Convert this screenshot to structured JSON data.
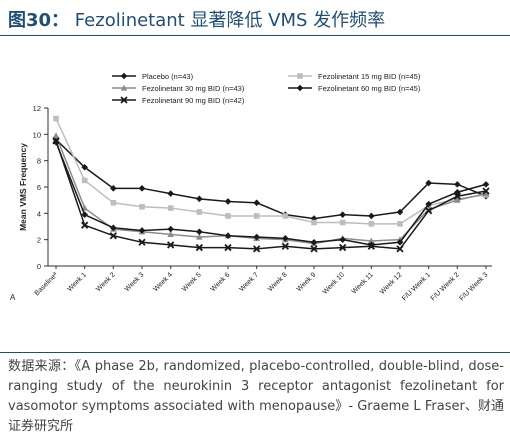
{
  "figure": {
    "title_number": "图30：",
    "title_text": "Fezolinetant 显著降低 VMS 发作频率",
    "source_text": "数据来源：《A phase 2b, randomized, placebo-controlled, double-blind, dose-ranging study of the neurokinin 3 receptor antagonist fezolinetant for vasomotor symptoms associated with menopause》- Graeme L Fraser、财通证券研究所"
  },
  "chart_data": {
    "type": "line",
    "title": "",
    "xlabel": "",
    "ylabel": "Mean VMS Frequency",
    "panel_label": "A",
    "ylim": [
      0,
      12
    ],
    "yticks": [
      0,
      2,
      4,
      6,
      8,
      10,
      12
    ],
    "categories": [
      "Baselineª",
      "Week 1",
      "Week 2",
      "Week 3",
      "Week 4",
      "Week 5",
      "Week 6",
      "Week 7",
      "Week 8",
      "Week 9",
      "Week 10",
      "Week 11",
      "Week 12",
      "F/U Week 1",
      "F/U Week 2",
      "F/U Week 3"
    ],
    "grid": false,
    "legend_position": "top",
    "series": [
      {
        "name": "Placebo (n=43)",
        "color": "#1a1a1a",
        "marker": "diamond",
        "values": [
          9.6,
          7.5,
          5.9,
          5.9,
          5.5,
          5.1,
          4.9,
          4.8,
          3.9,
          3.6,
          3.9,
          3.8,
          4.1,
          6.3,
          6.2,
          5.3
        ]
      },
      {
        "name": "Fezolinetant 15 mg BID (n=45)",
        "color": "#bdbdbd",
        "marker": "square",
        "values": [
          11.2,
          6.5,
          4.8,
          4.5,
          4.4,
          4.1,
          3.8,
          3.8,
          3.8,
          3.3,
          3.3,
          3.2,
          3.2,
          4.6,
          5.1,
          5.4
        ]
      },
      {
        "name": "Fezolinetant 30 mg BID (n=43)",
        "color": "#8c8c8c",
        "marker": "triangle",
        "values": [
          9.9,
          4.4,
          2.8,
          2.6,
          2.4,
          2.2,
          2.3,
          2.1,
          2.0,
          1.7,
          2.1,
          1.9,
          2.0,
          4.3,
          5.0,
          5.5
        ]
      },
      {
        "name": "Fezolinetant 60 mg BID (n=45)",
        "color": "#1a1a1a",
        "marker": "diamond",
        "values": [
          9.4,
          3.9,
          2.9,
          2.7,
          2.8,
          2.6,
          2.3,
          2.2,
          2.1,
          1.8,
          2.0,
          1.6,
          1.8,
          4.7,
          5.6,
          6.2
        ]
      },
      {
        "name": "Fezolinetant 90 mg BID (n=42)",
        "color": "#1a1a1a",
        "marker": "x",
        "values": [
          9.5,
          3.1,
          2.3,
          1.8,
          1.6,
          1.4,
          1.4,
          1.3,
          1.5,
          1.3,
          1.4,
          1.5,
          1.3,
          4.2,
          5.3,
          5.7
        ]
      }
    ]
  }
}
